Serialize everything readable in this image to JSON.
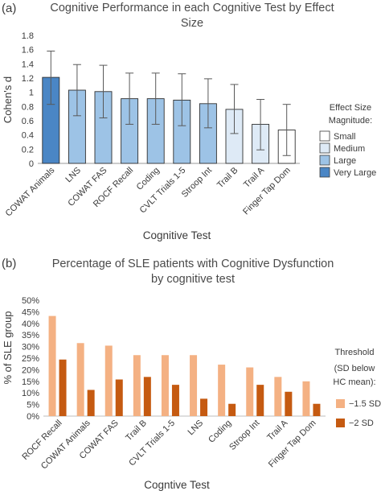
{
  "chart_data": [
    {
      "panel_label": "(a)",
      "type": "bar",
      "title": "Cognitive Performance in each Cognitive Test by Effect Size",
      "xlabel": "Cognitive Test",
      "ylabel": "Cohen's d",
      "ylim": [
        0,
        1.8
      ],
      "yticks": [
        "0",
        "0.2",
        "0.4",
        "0.6",
        "0.8",
        "1",
        "1.2",
        "1.4",
        "1.6",
        "1.8"
      ],
      "categories": [
        "COWAT Animals",
        "LNS",
        "COWAT FAS",
        "ROCF Recall",
        "Coding",
        "CVLT Trials 1-5",
        "Stroop Int",
        "Trail B",
        "Trail A",
        "Finger Tap Dom"
      ],
      "values": [
        1.21,
        1.03,
        1.01,
        0.91,
        0.91,
        0.89,
        0.84,
        0.76,
        0.55,
        0.47
      ],
      "error_low": [
        0.83,
        0.67,
        0.64,
        0.55,
        0.55,
        0.53,
        0.5,
        0.42,
        0.19,
        0.11
      ],
      "error_high": [
        1.58,
        1.39,
        1.38,
        1.27,
        1.27,
        1.26,
        1.19,
        1.11,
        0.9,
        0.83
      ],
      "magnitude": [
        "Very Large",
        "Large",
        "Large",
        "Large",
        "Large",
        "Large",
        "Large",
        "Medium",
        "Medium",
        "Small"
      ],
      "legend": {
        "title": "Effect Size Magnitude:",
        "position": "right",
        "items": [
          {
            "label": "Small",
            "color": "#ffffff"
          },
          {
            "label": "Medium",
            "color": "#deeaf6"
          },
          {
            "label": "Large",
            "color": "#9dc3e6"
          },
          {
            "label": "Very Large",
            "color": "#4a86c5"
          }
        ]
      },
      "grid": false
    },
    {
      "panel_label": "(b)",
      "type": "bar",
      "title": "Percentage of SLE patients with Cognitive Dysfunction by cognitive test",
      "xlabel": "Cogntive Test",
      "ylabel": "% of SLE group",
      "ylim": [
        0,
        50
      ],
      "yticks": [
        "0%",
        "5%",
        "10%",
        "15%",
        "20%",
        "25%",
        "30%",
        "35%",
        "40%",
        "45%",
        "50%"
      ],
      "categories": [
        "ROCF Recall",
        "COWAT Animals",
        "COWAT FAS",
        "Trail B",
        "CVLT Trials 1-5",
        "LNS",
        "Coding",
        "Stroop Int",
        "Trail A",
        "Finger Tap Dom"
      ],
      "series": [
        {
          "name": "−1.5 SD",
          "color": "#f4b183",
          "values": [
            43.2,
            31.5,
            30.4,
            26.3,
            26.3,
            26.3,
            22.2,
            21.0,
            16.9,
            15.0
          ]
        },
        {
          "name": "−2 SD",
          "color": "#c55a11",
          "values": [
            24.4,
            11.3,
            15.8,
            16.9,
            13.5,
            7.5,
            5.3,
            13.5,
            10.5,
            5.3
          ]
        }
      ],
      "legend": {
        "title_lines": [
          "Threshold",
          "(SD below",
          "HC mean):"
        ],
        "position": "right"
      },
      "grid": false
    }
  ]
}
